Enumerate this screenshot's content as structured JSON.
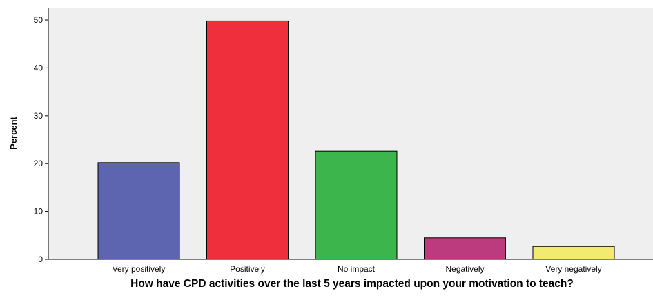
{
  "chart_data": {
    "type": "bar",
    "categories": [
      "Very positively",
      "Positively",
      "No impact",
      "Negatively",
      "Very negatively"
    ],
    "values": [
      20.2,
      49.8,
      22.6,
      4.5,
      2.7
    ],
    "colors": [
      "#5d64b0",
      "#ef2f3c",
      "#3db54d",
      "#bc3a7e",
      "#f3ea72"
    ],
    "xlabel": "How have CPD activities over the last 5 years impacted upon your motivation to teach?",
    "ylabel": "Percent",
    "ylim": [
      0,
      52.6
    ],
    "yticks": [
      0,
      10,
      20,
      30,
      40,
      50
    ],
    "grid": false,
    "plot_background": "#efefef"
  }
}
